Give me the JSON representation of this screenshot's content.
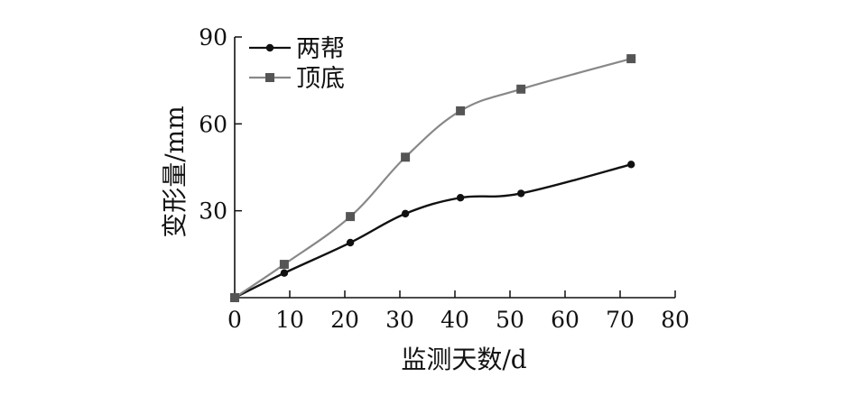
{
  "chart_data": {
    "type": "line",
    "xlabel": "监测天数/d",
    "ylabel": "变形量/mm",
    "xlim": [
      0,
      80
    ],
    "ylim": [
      0,
      90
    ],
    "xticks": [
      0,
      10,
      20,
      30,
      40,
      50,
      60,
      70,
      80
    ],
    "yticks": [
      30,
      60,
      90
    ],
    "grid": false,
    "legend_position": "top-left",
    "series": [
      {
        "name": "两帮",
        "color": "#111111",
        "marker": "diamond",
        "x": [
          0,
          9,
          21,
          31,
          41,
          52,
          72
        ],
        "y": [
          0,
          8.5,
          19,
          29,
          34.5,
          36,
          46
        ]
      },
      {
        "name": "顶底",
        "color": "#888888",
        "marker": "square",
        "x": [
          0,
          9,
          21,
          31,
          41,
          52,
          72
        ],
        "y": [
          0,
          11.5,
          28,
          48.5,
          64.5,
          72,
          82.5
        ]
      }
    ]
  }
}
